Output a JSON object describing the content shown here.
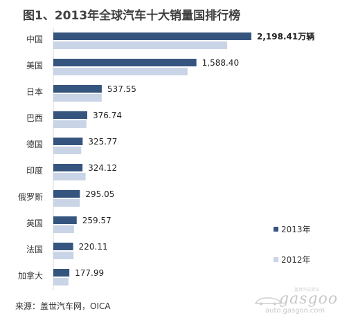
{
  "chart_data": {
    "type": "bar",
    "orientation": "horizontal",
    "title": "图1、2013年全球汽车十大销量国排行榜",
    "categories": [
      "中国",
      "美国",
      "日本",
      "巴西",
      "德国",
      "印度",
      "俄罗斯",
      "英国",
      "法国",
      "加拿大"
    ],
    "series": [
      {
        "name": "2013年",
        "color": "#35557e",
        "values": [
          2198.41,
          1588.4,
          537.55,
          376.74,
          325.77,
          324.12,
          295.05,
          259.57,
          220.11,
          177.99
        ],
        "data_labels": [
          "2,198.41万辆",
          "1,588.40",
          "537.55",
          "376.74",
          "325.77",
          "324.12",
          "295.05",
          "259.57",
          "220.11",
          "177.99"
        ]
      },
      {
        "name": "2012年",
        "color": "#c9d4e6",
        "values": [
          1930,
          1490,
          537,
          368,
          310,
          358,
          294,
          230,
          225,
          168
        ]
      }
    ],
    "xlim": [
      0,
      2198.41
    ],
    "legend_position": "right",
    "grid": false
  },
  "source": "来源：盖世汽车网，OICA",
  "watermark": {
    "logo": "gasgoo",
    "small_text": "盖世汽车资讯",
    "url": "auto.gasgoo.com"
  }
}
